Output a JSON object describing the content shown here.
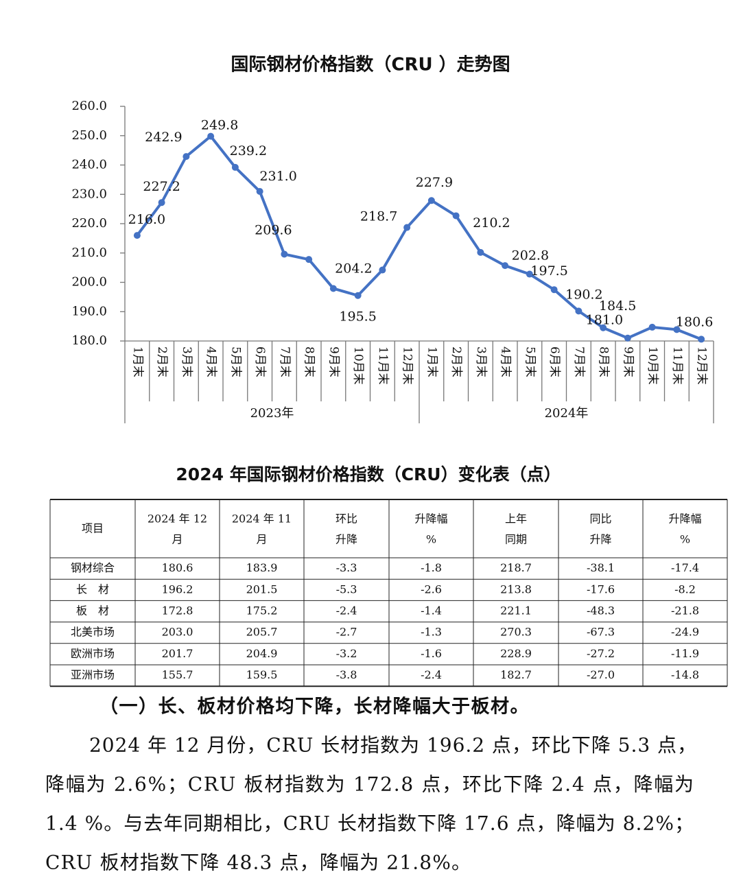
{
  "chart_data": {
    "type": "line",
    "title": "国际钢材价格指数（CRU ）走势图",
    "categories": [
      "1月末",
      "2月末",
      "3月末",
      "4月末",
      "5月末",
      "6月末",
      "7月末",
      "8月末",
      "9月末",
      "10月末",
      "11月末",
      "12月末",
      "1月末",
      "2月末",
      "3月末",
      "4月末",
      "5月末",
      "6月末",
      "7月末",
      "8月末",
      "9月末",
      "10月末",
      "11月末",
      "12月末"
    ],
    "x_groups": [
      "2023年",
      "2024年"
    ],
    "series": [
      {
        "color": "#4472c4",
        "values": [
          216.0,
          227.2,
          242.9,
          249.8,
          239.2,
          231.0,
          209.6,
          207.8,
          197.9,
          195.5,
          204.2,
          218.7,
          227.9,
          222.7,
          210.2,
          205.7,
          202.8,
          197.5,
          190.2,
          184.5,
          181.0,
          184.7,
          183.9,
          180.6
        ],
        "value_labels": [
          "216.0",
          "227.2",
          "242.9",
          "249.8",
          "239.2",
          "231.0",
          "209.6",
          null,
          null,
          "195.5",
          "204.2",
          "218.7",
          "227.9",
          null,
          "210.2",
          null,
          "202.8",
          "197.5",
          "190.2",
          "184.5",
          "181.0",
          null,
          null,
          "180.6"
        ]
      }
    ],
    "ylim": [
      180,
      260
    ],
    "yticks": [
      {
        "value": 180,
        "label": "180.0"
      },
      {
        "value": 190,
        "label": "190.0"
      },
      {
        "value": 200,
        "label": "200.0"
      },
      {
        "value": 210,
        "label": "210.0"
      },
      {
        "value": 220,
        "label": "220.0"
      },
      {
        "value": 230,
        "label": "230.0"
      },
      {
        "value": 240,
        "label": "240.0"
      },
      {
        "value": 250,
        "label": "250.0"
      },
      {
        "value": 260,
        "label": "260.0"
      }
    ],
    "grid": false
  },
  "table": {
    "title": "2024 年国际钢材价格指数（CRU）变化表（点）",
    "header": [
      [
        "项目"
      ],
      [
        "2024 年 12",
        "月"
      ],
      [
        "2024 年 11",
        "月"
      ],
      [
        "环比",
        "升降"
      ],
      [
        "升降幅",
        "%"
      ],
      [
        "上年",
        "同期"
      ],
      [
        "同比",
        "升降"
      ],
      [
        "升降幅",
        "%"
      ]
    ],
    "rows": [
      [
        "钢材综合",
        "180.6",
        "183.9",
        "-3.3",
        "-1.8",
        "218.7",
        "-38.1",
        "-17.4"
      ],
      [
        "长　材",
        "196.2",
        "201.5",
        "-5.3",
        "-2.6",
        "213.8",
        "-17.6",
        "-8.2"
      ],
      [
        "板　材",
        "172.8",
        "175.2",
        "-2.4",
        "-1.4",
        "221.1",
        "-48.3",
        "-21.8"
      ],
      [
        "北美市场",
        "203.0",
        "205.7",
        "-2.7",
        "-1.3",
        "270.3",
        "-67.3",
        "-24.9"
      ],
      [
        "欧洲市场",
        "201.7",
        "204.9",
        "-3.2",
        "-1.6",
        "228.9",
        "-27.2",
        "-11.9"
      ],
      [
        "亚洲市场",
        "155.7",
        "159.5",
        "-3.8",
        "-2.4",
        "182.7",
        "-27.0",
        "-14.8"
      ]
    ]
  },
  "text": {
    "heading": "（一）长、板材价格均下降，长材降幅大于板材。",
    "lines": [
      "2024 年 12 月份，CRU 长材指数为 196.2 点，环比下降 5.3 点，",
      "降幅为 2.6%；CRU 板材指数为 172.8 点，环比下降 2.4 点，降幅为",
      "1.4 %。与去年同期相比，CRU 长材指数下降 17.6 点，降幅为 8.2%；",
      "CRU 板材指数下降 48.3 点，降幅为 21.8%。"
    ]
  }
}
